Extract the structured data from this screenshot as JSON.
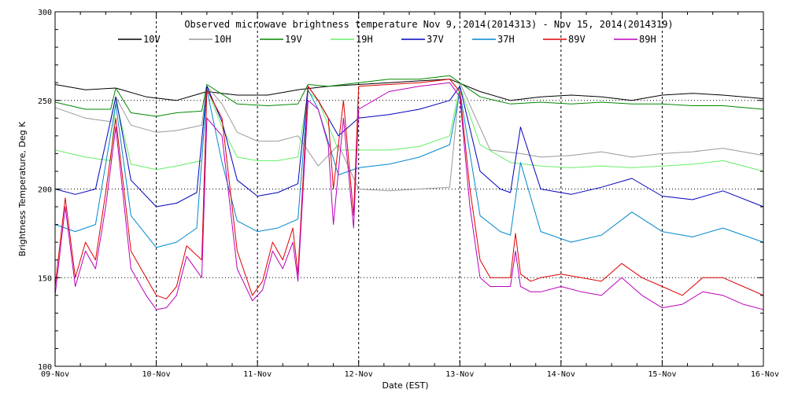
{
  "chart_data": {
    "type": "line",
    "title": "Observed microwave brightness temperature Nov  9, 2014(2014313) - Nov 15, 2014(2014319)",
    "xlabel": "Date (EST)",
    "ylabel": "Brightness Temperature, Deg K",
    "ylim": [
      100,
      300
    ],
    "xlim": [
      0,
      7
    ],
    "y_ticks": [
      100,
      150,
      200,
      250,
      300
    ],
    "x_ticks": [
      "09-Nov",
      "10-Nov",
      "11-Nov",
      "12-Nov",
      "13-Nov",
      "14-Nov",
      "15-Nov",
      "16-Nov"
    ],
    "grid": "dotted",
    "legend_position": "top",
    "series": [
      {
        "name": "10V",
        "color": "#000000",
        "x": [
          0,
          0.3,
          0.6,
          0.9,
          1.2,
          1.5,
          1.8,
          2.1,
          2.4,
          2.7,
          3.0,
          3.3,
          3.6,
          3.9,
          4.2,
          4.5,
          4.8,
          5.1,
          5.4,
          5.7,
          6.0,
          6.3,
          6.6,
          7.0
        ],
        "values": [
          259,
          256,
          257,
          252,
          250,
          255,
          253,
          253,
          256,
          258,
          259,
          260,
          261,
          262,
          255,
          250,
          252,
          253,
          252,
          250,
          253,
          254,
          253,
          251
        ]
      },
      {
        "name": "10H",
        "color": "#999999",
        "x": [
          0,
          0.3,
          0.55,
          0.6,
          0.75,
          1.0,
          1.2,
          1.45,
          1.5,
          1.65,
          1.8,
          2.0,
          2.2,
          2.4,
          2.6,
          2.8,
          3.0,
          3.3,
          3.6,
          3.9,
          4.0,
          4.3,
          4.6,
          4.8,
          5.1,
          5.4,
          5.7,
          6.0,
          6.3,
          6.6,
          7.0
        ],
        "values": [
          246,
          240,
          238,
          252,
          236,
          232,
          233,
          236,
          258,
          248,
          232,
          227,
          227,
          230,
          213,
          225,
          200,
          199,
          200,
          201,
          260,
          222,
          220,
          218,
          219,
          221,
          218,
          220,
          221,
          223,
          219
        ]
      },
      {
        "name": "19V",
        "color": "#008800",
        "x": [
          0,
          0.3,
          0.55,
          0.6,
          0.75,
          1.0,
          1.2,
          1.45,
          1.5,
          1.8,
          2.1,
          2.4,
          2.5,
          2.7,
          3.0,
          3.3,
          3.6,
          3.9,
          4.2,
          4.5,
          4.8,
          5.1,
          5.4,
          5.7,
          6.0,
          6.3,
          6.6,
          7.0
        ],
        "values": [
          249,
          245,
          245,
          257,
          243,
          241,
          243,
          244,
          259,
          248,
          247,
          248,
          259,
          258,
          260,
          262,
          262,
          264,
          252,
          248,
          249,
          248,
          249,
          248,
          248,
          247,
          247,
          245
        ]
      },
      {
        "name": "19H",
        "color": "#66ee66",
        "x": [
          0,
          0.3,
          0.55,
          0.6,
          0.75,
          1.0,
          1.2,
          1.45,
          1.5,
          1.65,
          1.8,
          2.0,
          2.2,
          2.4,
          2.5,
          2.6,
          2.8,
          3.0,
          3.3,
          3.6,
          3.9,
          4.0,
          4.2,
          4.5,
          4.8,
          5.1,
          5.4,
          5.7,
          6.0,
          6.3,
          6.6,
          7.0
        ],
        "values": [
          222,
          218,
          216,
          250,
          214,
          211,
          213,
          216,
          257,
          235,
          218,
          216,
          216,
          218,
          255,
          250,
          222,
          222,
          222,
          224,
          230,
          258,
          225,
          215,
          213,
          212,
          213,
          212,
          213,
          214,
          216,
          210
        ]
      },
      {
        "name": "37V",
        "color": "#0000bb",
        "x": [
          0,
          0.2,
          0.4,
          0.6,
          0.75,
          1.0,
          1.2,
          1.4,
          1.5,
          1.65,
          1.8,
          2.0,
          2.2,
          2.4,
          2.5,
          2.6,
          2.8,
          3.0,
          3.3,
          3.6,
          3.9,
          4.0,
          4.2,
          4.4,
          4.5,
          4.6,
          4.8,
          5.1,
          5.4,
          5.7,
          6.0,
          6.3,
          6.6,
          7.0
        ],
        "values": [
          200,
          197,
          200,
          252,
          205,
          190,
          192,
          198,
          258,
          238,
          205,
          196,
          198,
          203,
          258,
          250,
          230,
          240,
          242,
          245,
          250,
          258,
          210,
          200,
          198,
          235,
          200,
          197,
          201,
          206,
          196,
          194,
          199,
          190
        ]
      },
      {
        "name": "37H",
        "color": "#0088cc",
        "x": [
          0,
          0.2,
          0.4,
          0.6,
          0.75,
          1.0,
          1.2,
          1.4,
          1.5,
          1.65,
          1.8,
          2.0,
          2.2,
          2.4,
          2.5,
          2.6,
          2.8,
          3.0,
          3.3,
          3.6,
          3.9,
          4.0,
          4.2,
          4.4,
          4.5,
          4.6,
          4.8,
          5.1,
          5.4,
          5.7,
          6.0,
          6.3,
          6.6,
          7.0
        ],
        "values": [
          180,
          176,
          180,
          248,
          185,
          167,
          170,
          178,
          256,
          215,
          182,
          176,
          178,
          183,
          256,
          245,
          208,
          212,
          214,
          218,
          225,
          255,
          185,
          176,
          174,
          215,
          176,
          170,
          174,
          187,
          176,
          173,
          178,
          170
        ]
      },
      {
        "name": "89V",
        "color": "#dd0000",
        "x": [
          0,
          0.1,
          0.2,
          0.3,
          0.4,
          0.5,
          0.6,
          0.75,
          0.9,
          1.0,
          1.1,
          1.2,
          1.3,
          1.45,
          1.5,
          1.65,
          1.8,
          1.95,
          2.05,
          2.15,
          2.25,
          2.35,
          2.4,
          2.5,
          2.6,
          2.7,
          2.75,
          2.85,
          2.95,
          3.0,
          3.3,
          3.6,
          3.9,
          4.0,
          4.1,
          4.2,
          4.3,
          4.4,
          4.5,
          4.55,
          4.6,
          4.7,
          4.8,
          5.0,
          5.2,
          5.4,
          5.6,
          5.8,
          6.0,
          6.2,
          6.4,
          6.6,
          6.8,
          7.0
        ],
        "values": [
          145,
          195,
          150,
          170,
          160,
          198,
          240,
          165,
          150,
          140,
          138,
          145,
          168,
          160,
          256,
          240,
          165,
          140,
          148,
          170,
          160,
          178,
          152,
          258,
          250,
          240,
          200,
          250,
          185,
          258,
          259,
          260,
          262,
          255,
          200,
          160,
          150,
          150,
          150,
          175,
          152,
          148,
          150,
          152,
          150,
          148,
          158,
          150,
          145,
          140,
          150,
          150,
          145,
          140
        ]
      },
      {
        "name": "89H",
        "color": "#bb00bb",
        "x": [
          0,
          0.1,
          0.2,
          0.3,
          0.4,
          0.5,
          0.6,
          0.75,
          0.9,
          1.0,
          1.1,
          1.2,
          1.3,
          1.45,
          1.5,
          1.65,
          1.8,
          1.95,
          2.05,
          2.15,
          2.25,
          2.35,
          2.4,
          2.5,
          2.6,
          2.7,
          2.75,
          2.85,
          2.95,
          3.0,
          3.3,
          3.6,
          3.9,
          4.0,
          4.1,
          4.2,
          4.3,
          4.4,
          4.5,
          4.55,
          4.6,
          4.7,
          4.8,
          5.0,
          5.2,
          5.4,
          5.6,
          5.8,
          6.0,
          6.2,
          6.4,
          6.6,
          6.8,
          7.0
        ],
        "values": [
          140,
          190,
          145,
          165,
          155,
          190,
          235,
          155,
          140,
          132,
          133,
          140,
          162,
          150,
          240,
          230,
          155,
          137,
          143,
          165,
          155,
          170,
          148,
          250,
          245,
          225,
          180,
          240,
          178,
          245,
          255,
          258,
          260,
          252,
          190,
          150,
          145,
          145,
          145,
          165,
          145,
          142,
          142,
          145,
          142,
          140,
          150,
          140,
          133,
          135,
          142,
          140,
          135,
          132
        ]
      }
    ]
  }
}
